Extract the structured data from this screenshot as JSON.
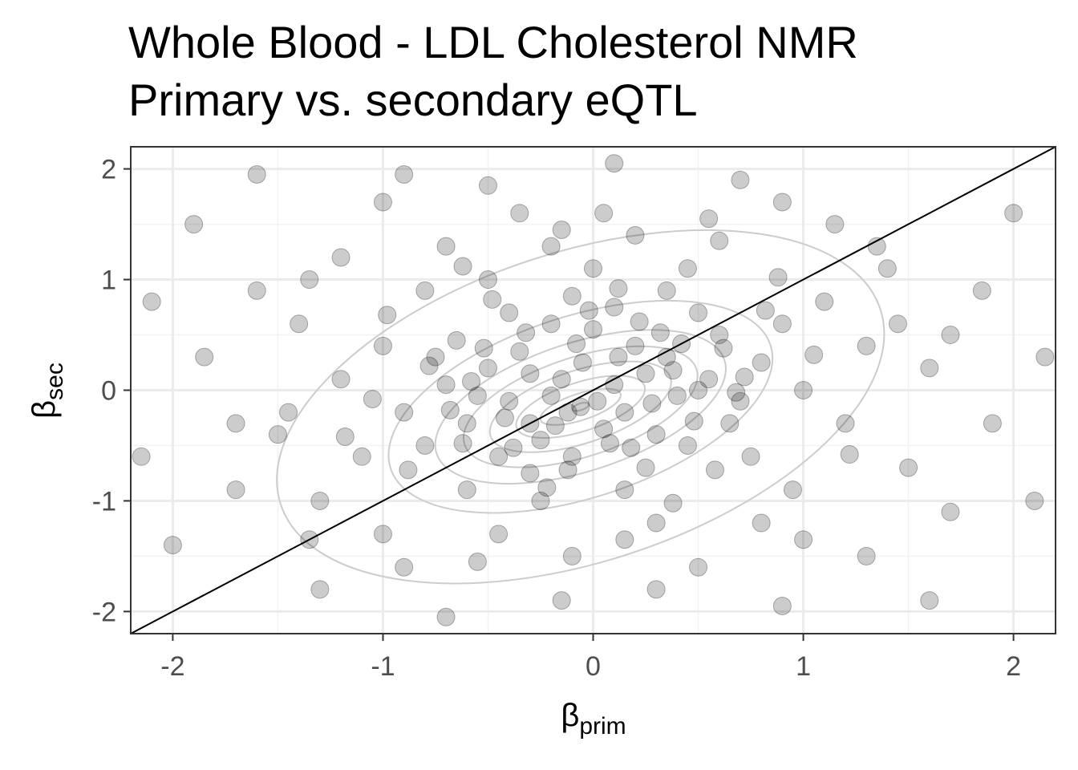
{
  "title_line1": "Whole Blood - LDL Cholesterol NMR",
  "title_line2": "Primary vs. secondary eQTL",
  "chart_data": {
    "type": "scatter",
    "title": "Whole Blood - LDL Cholesterol NMR\nPrimary vs. secondary eQTL",
    "xlabel_symbol": "β",
    "xlabel_sub": "prim",
    "ylabel_symbol": "β",
    "ylabel_sub": "sec",
    "xlim": [
      -2.2,
      2.2
    ],
    "ylim": [
      -2.2,
      2.2
    ],
    "x_ticks": [
      -2,
      -1,
      0,
      1,
      2
    ],
    "y_ticks": [
      -2,
      -1,
      0,
      1,
      2
    ],
    "x_tick_labels": [
      "-2",
      "-1",
      "0",
      "1",
      "2"
    ],
    "y_tick_labels": [
      "-2",
      "-1",
      "0",
      "1",
      "2"
    ],
    "grid": true,
    "theme": "bw",
    "point_color": "#000000",
    "point_alpha": 0.2,
    "reference_line": {
      "type": "identity",
      "slope": 1,
      "intercept": 0,
      "color": "#000000"
    },
    "density_contours": {
      "color": "#cccccc",
      "center": [
        -0.06,
        -0.15
      ],
      "levels": [
        {
          "rx": 0.04,
          "ry": 0.03
        },
        {
          "rx": 0.2,
          "ry": 0.12
        },
        {
          "rx": 0.32,
          "ry": 0.22
        },
        {
          "rx": 0.45,
          "ry": 0.33
        },
        {
          "rx": 0.58,
          "ry": 0.45
        },
        {
          "rx": 0.72,
          "ry": 0.58
        },
        {
          "rx": 0.95,
          "ry": 0.82
        },
        {
          "rx": 1.5,
          "ry": 1.4
        }
      ]
    },
    "points": [
      [
        -0.06,
        -0.15
      ],
      [
        -0.12,
        -0.2
      ],
      [
        0.02,
        -0.1
      ],
      [
        -0.2,
        -0.05
      ],
      [
        0.1,
        0.05
      ],
      [
        -0.3,
        -0.3
      ],
      [
        0.25,
        0.15
      ],
      [
        -0.15,
        0.1
      ],
      [
        0.05,
        -0.35
      ],
      [
        -0.4,
        -0.1
      ],
      [
        0.35,
        0.3
      ],
      [
        -0.25,
        -0.45
      ],
      [
        0.15,
        -0.2
      ],
      [
        -0.05,
        0.25
      ],
      [
        0.4,
        -0.05
      ],
      [
        -0.5,
        0.2
      ],
      [
        0.2,
        0.4
      ],
      [
        -0.35,
        0.35
      ],
      [
        0.3,
        -0.4
      ],
      [
        -0.6,
        -0.3
      ],
      [
        0.55,
        0.1
      ],
      [
        -0.1,
        -0.6
      ],
      [
        0.0,
        0.55
      ],
      [
        -0.45,
        -0.6
      ],
      [
        0.6,
        0.5
      ],
      [
        -0.7,
        0.05
      ],
      [
        0.45,
        -0.5
      ],
      [
        -0.2,
        0.6
      ],
      [
        0.1,
        0.75
      ],
      [
        -0.55,
        -0.05
      ],
      [
        0.7,
        -0.1
      ],
      [
        -0.3,
        -0.75
      ],
      [
        0.25,
        -0.7
      ],
      [
        -0.65,
        0.45
      ],
      [
        0.8,
        0.25
      ],
      [
        -0.8,
        -0.5
      ],
      [
        0.5,
        0.7
      ],
      [
        -0.1,
        0.85
      ],
      [
        0.15,
        -0.9
      ],
      [
        -0.4,
        0.7
      ],
      [
        0.65,
        -0.3
      ],
      [
        -0.75,
        0.3
      ],
      [
        0.9,
        0.6
      ],
      [
        -0.9,
        -0.2
      ],
      [
        0.35,
        0.9
      ],
      [
        -0.25,
        -1.0
      ],
      [
        0.75,
        -0.6
      ],
      [
        -0.5,
        1.0
      ],
      [
        0.0,
        1.1
      ],
      [
        -1.0,
        0.4
      ],
      [
        1.0,
        0.0
      ],
      [
        -0.6,
        -0.9
      ],
      [
        0.45,
        1.1
      ],
      [
        -1.1,
        -0.6
      ],
      [
        1.1,
        0.8
      ],
      [
        -0.2,
        1.3
      ],
      [
        0.3,
        -1.2
      ],
      [
        -0.8,
        0.9
      ],
      [
        0.95,
        -0.9
      ],
      [
        -1.2,
        0.1
      ],
      [
        0.2,
        1.4
      ],
      [
        -0.45,
        -1.3
      ],
      [
        1.2,
        -0.3
      ],
      [
        -1.3,
        -1.0
      ],
      [
        0.6,
        1.35
      ],
      [
        -0.7,
        1.3
      ],
      [
        1.3,
        0.4
      ],
      [
        -1.4,
        0.6
      ],
      [
        0.8,
        -1.2
      ],
      [
        -0.1,
        -1.5
      ],
      [
        1.4,
        1.1
      ],
      [
        -1.0,
        -1.3
      ],
      [
        0.05,
        1.6
      ],
      [
        -1.5,
        -0.4
      ],
      [
        1.5,
        -0.7
      ],
      [
        -0.35,
        1.6
      ],
      [
        0.5,
        -1.6
      ],
      [
        -1.2,
        1.2
      ],
      [
        1.15,
        1.5
      ],
      [
        -1.6,
        0.9
      ],
      [
        1.6,
        0.2
      ],
      [
        -0.9,
        -1.6
      ],
      [
        0.9,
        1.7
      ],
      [
        -1.7,
        -0.9
      ],
      [
        1.7,
        -1.1
      ],
      [
        -0.5,
        1.85
      ],
      [
        0.3,
        -1.8
      ],
      [
        -1.85,
        0.3
      ],
      [
        1.85,
        0.9
      ],
      [
        -1.3,
        -1.8
      ],
      [
        1.3,
        -1.5
      ],
      [
        -1.0,
        1.7
      ],
      [
        0.7,
        1.9
      ],
      [
        -1.9,
        1.5
      ],
      [
        1.9,
        -0.3
      ],
      [
        -0.15,
        -1.9
      ],
      [
        2.0,
        1.6
      ],
      [
        -2.0,
        -1.4
      ],
      [
        1.6,
        -1.9
      ],
      [
        -1.6,
        1.95
      ],
      [
        0.1,
        2.05
      ],
      [
        -2.1,
        0.8
      ],
      [
        2.1,
        -1.0
      ],
      [
        -0.7,
        -2.05
      ],
      [
        0.5,
        0.0
      ],
      [
        -0.3,
        0.15
      ],
      [
        0.12,
        0.3
      ],
      [
        -0.18,
        -0.32
      ],
      [
        0.28,
        -0.12
      ],
      [
        -0.42,
        -0.25
      ],
      [
        0.38,
        0.18
      ],
      [
        -0.08,
        0.42
      ],
      [
        0.62,
        0.38
      ],
      [
        -0.58,
        0.08
      ],
      [
        0.18,
        -0.52
      ],
      [
        -0.32,
        0.52
      ],
      [
        0.48,
        -0.28
      ],
      [
        -0.62,
        -0.48
      ],
      [
        0.72,
        0.12
      ],
      [
        -0.12,
        -0.72
      ],
      [
        0.22,
        0.62
      ],
      [
        -0.78,
        0.22
      ],
      [
        0.58,
        -0.72
      ],
      [
        -0.48,
        0.82
      ],
      [
        0.82,
        0.72
      ],
      [
        -0.88,
        -0.72
      ],
      [
        0.12,
        0.92
      ],
      [
        -0.22,
        -0.88
      ],
      [
        1.05,
        0.32
      ],
      [
        -1.05,
        -0.08
      ],
      [
        0.38,
        -1.02
      ],
      [
        -0.62,
        1.12
      ],
      [
        0.88,
        1.02
      ],
      [
        -0.98,
        0.68
      ],
      [
        1.22,
        -0.58
      ],
      [
        -1.18,
        -0.42
      ],
      [
        0.68,
        -0.02
      ],
      [
        -0.02,
        0.72
      ],
      [
        0.08,
        -0.48
      ],
      [
        -0.68,
        -0.18
      ],
      [
        0.32,
        0.52
      ],
      [
        -0.38,
        -0.52
      ],
      [
        0.42,
        0.42
      ],
      [
        -0.52,
        0.38
      ],
      [
        1.45,
        0.6
      ],
      [
        -1.45,
        -0.2
      ],
      [
        0.15,
        -1.35
      ],
      [
        -0.15,
        1.45
      ],
      [
        1.0,
        -1.35
      ],
      [
        -1.35,
        1.0
      ],
      [
        1.7,
        0.5
      ],
      [
        -1.7,
        -0.3
      ],
      [
        0.55,
        1.55
      ],
      [
        -0.55,
        -1.55
      ],
      [
        1.35,
        1.3
      ],
      [
        -1.35,
        -1.35
      ],
      [
        2.15,
        0.3
      ],
      [
        -2.15,
        -0.6
      ],
      [
        0.9,
        -1.95
      ],
      [
        -0.9,
        1.95
      ]
    ]
  }
}
